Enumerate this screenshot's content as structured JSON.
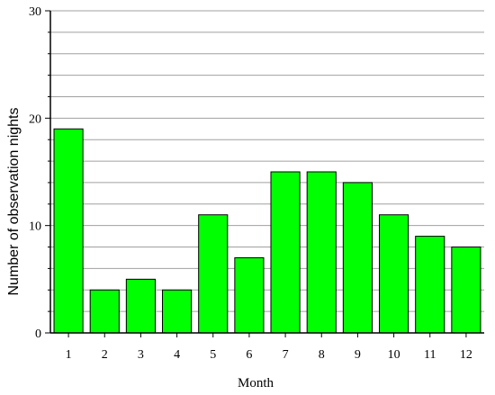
{
  "chart_data": {
    "type": "bar",
    "title": "",
    "xlabel": "Month",
    "ylabel": "Number of  observation nights",
    "categories": [
      "1",
      "2",
      "3",
      "4",
      "5",
      "6",
      "7",
      "8",
      "9",
      "10",
      "11",
      "12"
    ],
    "values": [
      19,
      4,
      5,
      4,
      11,
      7,
      15,
      15,
      14,
      11,
      9,
      8
    ],
    "ylim": [
      0,
      30
    ],
    "yticks": [
      "0",
      "10",
      "20",
      "30"
    ],
    "grid": true,
    "bar_color": "#00ff00",
    "bar_edge_color": "#000000",
    "grid_color": "#a0a0a0"
  }
}
